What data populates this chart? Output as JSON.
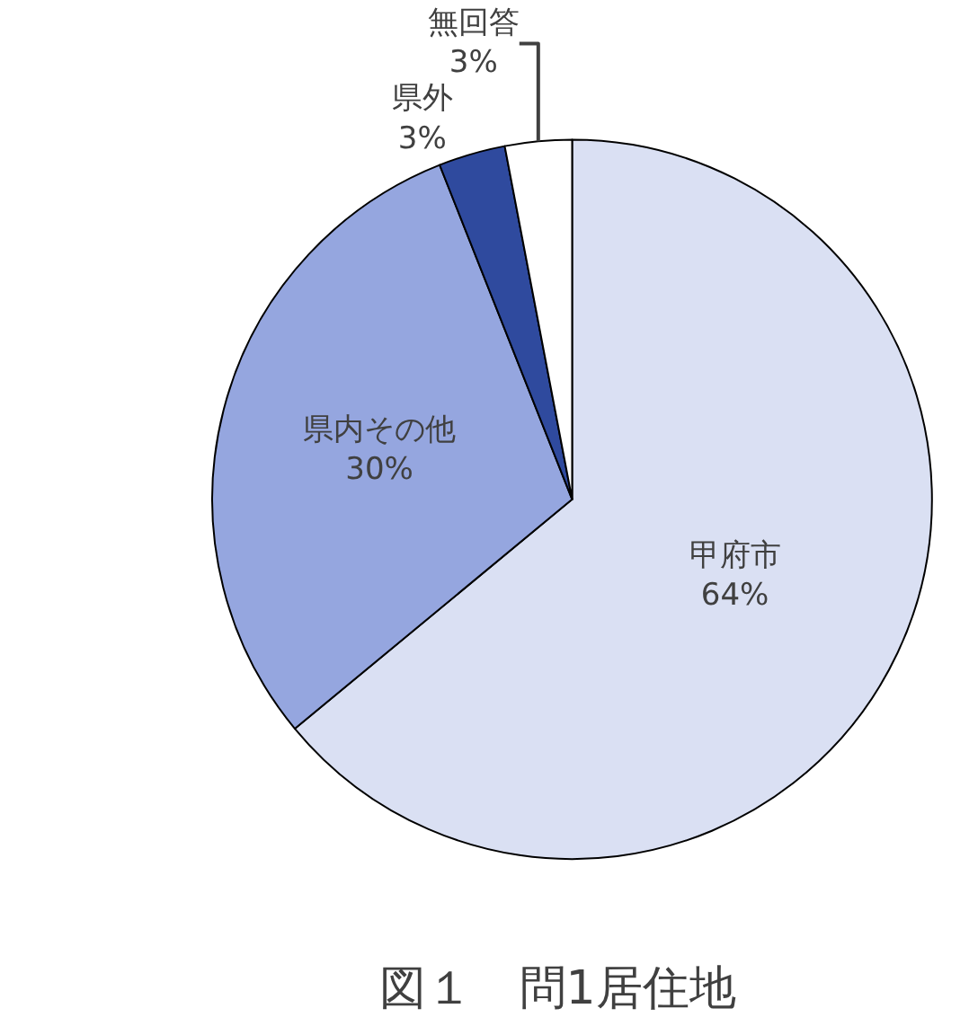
{
  "chart_data": {
    "type": "pie",
    "title": "図１　問1居住地",
    "categories": [
      "甲府市",
      "県内その他",
      "県外",
      "無回答"
    ],
    "values": [
      64,
      30,
      3,
      3
    ],
    "value_labels": [
      "64%",
      "30%",
      "3%",
      "3%"
    ],
    "colors": [
      "#dae0f3",
      "#95a6df",
      "#2f4a9e",
      "#ffffff"
    ],
    "legend": false
  }
}
